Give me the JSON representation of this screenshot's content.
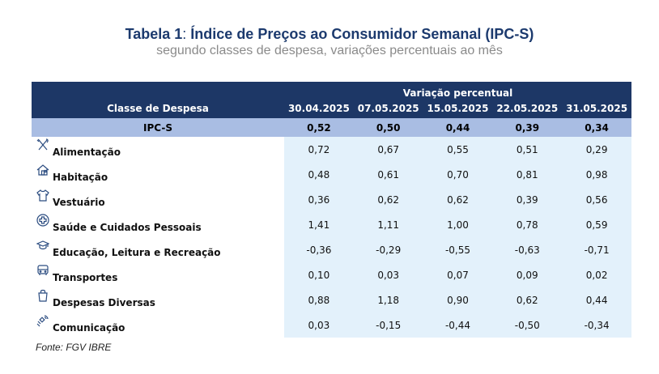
{
  "title": {
    "prefix": "Tabela 1",
    "sep": ":",
    "main": " Índice de Preços ao Consumidor Semanal (IPC-S)"
  },
  "subtitle": "segundo classes de despesa, variações percentuais ao mês",
  "table": {
    "group_header": "Variação percentual",
    "category_header": "Classe de Despesa",
    "dates": [
      "30.04.2025",
      "07.05.2025",
      "15.05.2025",
      "22.05.2025",
      "31.05.2025"
    ],
    "summary": {
      "label": "IPC-S",
      "values": [
        "0,52",
        "0,50",
        "0,44",
        "0,39",
        "0,34"
      ]
    },
    "rows": [
      {
        "label": "Alimentação",
        "icon": "utensils-icon",
        "values": [
          "0,72",
          "0,67",
          "0,55",
          "0,51",
          "0,29"
        ]
      },
      {
        "label": "Habitação",
        "icon": "house-icon",
        "values": [
          "0,48",
          "0,61",
          "0,70",
          "0,81",
          "0,98"
        ]
      },
      {
        "label": "Vestuário",
        "icon": "shirt-icon",
        "values": [
          "0,36",
          "0,62",
          "0,62",
          "0,39",
          "0,56"
        ]
      },
      {
        "label": "Saúde e Cuidados Pessoais",
        "icon": "health-cross-icon",
        "values": [
          "1,41",
          "1,11",
          "1,00",
          "0,78",
          "0,59"
        ]
      },
      {
        "label": "Educação, Leitura e Recreação",
        "icon": "graduation-cap-icon",
        "values": [
          "-0,36",
          "-0,29",
          "-0,55",
          "-0,63",
          "-0,71"
        ]
      },
      {
        "label": "Transportes",
        "icon": "bus-icon",
        "values": [
          "0,10",
          "0,03",
          "0,07",
          "0,09",
          "0,02"
        ]
      },
      {
        "label": "Despesas Diversas",
        "icon": "shopping-bag-icon",
        "values": [
          "0,88",
          "1,18",
          "0,90",
          "0,62",
          "0,44"
        ]
      },
      {
        "label": "Comunicação",
        "icon": "satellite-icon",
        "values": [
          "0,03",
          "-0,15",
          "-0,44",
          "-0,50",
          "-0,34"
        ]
      }
    ]
  },
  "source": "Fonte: FGV IBRE",
  "colors": {
    "title": "#1c3a6e",
    "header_bg": "#1d3766",
    "summary_bg": "#a9bde3",
    "value_bg": "#e3f1fb"
  }
}
